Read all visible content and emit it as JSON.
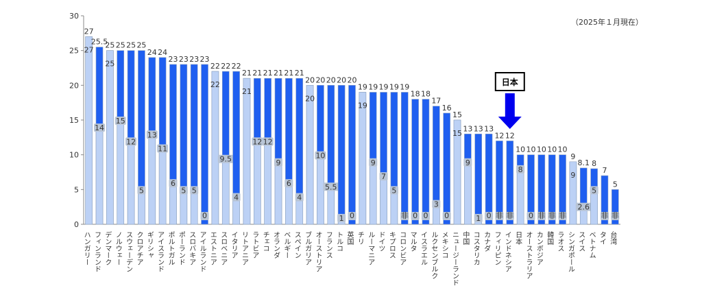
{
  "note": "（2025年１月現在）",
  "chart_data": {
    "type": "bar",
    "ylim": [
      0,
      30
    ],
    "yticks": [
      "0",
      "5",
      "10",
      "15",
      "20",
      "25",
      "30"
    ],
    "callout_label": "日本",
    "colors": {
      "standard": "#1f5ff0",
      "reduced": "#bcd1f5",
      "border": "#8da2c0",
      "arrow": "#0000ee"
    },
    "categories": [
      {
        "name": "ハンガリー",
        "standard": 27,
        "reduced": 27,
        "top": "27",
        "in": "27"
      },
      {
        "name": "フィンランド",
        "standard": 25.5,
        "reduced": 14,
        "top": "25.5",
        "in": "14"
      },
      {
        "name": "デンマーク",
        "standard": 25,
        "reduced": 25,
        "top": "25",
        "in": "25"
      },
      {
        "name": "ノルウェー",
        "standard": 25,
        "reduced": 15,
        "top": "25",
        "in": "15"
      },
      {
        "name": "スウェーデン",
        "standard": 25,
        "reduced": 12,
        "top": "25",
        "in": "12"
      },
      {
        "name": "クロアチア",
        "standard": 25,
        "reduced": 5,
        "top": "25",
        "in": "5"
      },
      {
        "name": "ギリシャ",
        "standard": 24,
        "reduced": 13,
        "top": "24",
        "in": "13"
      },
      {
        "name": "アイスランド",
        "standard": 24,
        "reduced": 11,
        "top": "24",
        "in": "11"
      },
      {
        "name": "ポルトガル",
        "standard": 23,
        "reduced": 6,
        "top": "23",
        "in": "6"
      },
      {
        "name": "ポーランド",
        "standard": 23,
        "reduced": 5,
        "top": "23",
        "in": "5"
      },
      {
        "name": "スロバキア",
        "standard": 23,
        "reduced": 5,
        "top": "23",
        "in": "5"
      },
      {
        "name": "アイルランド",
        "standard": 23,
        "reduced": 0,
        "top": "23",
        "in": "0"
      },
      {
        "name": "エストニア",
        "standard": 22,
        "reduced": 22,
        "top": "22",
        "in": "22"
      },
      {
        "name": "スロベニア",
        "standard": 22,
        "reduced": 9.5,
        "top": "22",
        "in": "9.5"
      },
      {
        "name": "イタリア",
        "standard": 22,
        "reduced": 4,
        "top": "22",
        "in": "4"
      },
      {
        "name": "リトアニア",
        "standard": 21,
        "reduced": 21,
        "top": "21",
        "in": "21"
      },
      {
        "name": "ラトビア",
        "standard": 21,
        "reduced": 12,
        "top": "21",
        "in": "12"
      },
      {
        "name": "チェコ",
        "standard": 21,
        "reduced": 12,
        "top": "21",
        "in": "12"
      },
      {
        "name": "オランダ",
        "standard": 21,
        "reduced": 9,
        "top": "21",
        "in": "9"
      },
      {
        "name": "ベルギー",
        "standard": 21,
        "reduced": 6,
        "top": "21",
        "in": "6"
      },
      {
        "name": "スペイン",
        "standard": 21,
        "reduced": 4,
        "top": "21",
        "in": "4"
      },
      {
        "name": "ブルガリア",
        "standard": 20,
        "reduced": 20,
        "top": "20",
        "in": "20"
      },
      {
        "name": "オーストリア",
        "standard": 20,
        "reduced": 10,
        "top": "20",
        "in": "10"
      },
      {
        "name": "フランス",
        "standard": 20,
        "reduced": 5.5,
        "top": "20",
        "in": "5.5"
      },
      {
        "name": "トルコ",
        "standard": 20,
        "reduced": 1,
        "top": "20",
        "in": "1"
      },
      {
        "name": "英国",
        "standard": 20,
        "reduced": 0,
        "top": "20",
        "in": "0"
      },
      {
        "name": "チリ",
        "standard": 19,
        "reduced": 19,
        "top": "19",
        "in": "19"
      },
      {
        "name": "ルーマニア",
        "standard": 19,
        "reduced": 9,
        "top": "19",
        "in": "9"
      },
      {
        "name": "ドイツ",
        "standard": 19,
        "reduced": 7,
        "top": "19",
        "in": "7"
      },
      {
        "name": "キプロス",
        "standard": 19,
        "reduced": 5,
        "top": "19",
        "in": "5"
      },
      {
        "name": "コロンビア",
        "standard": 19,
        "reduced": 0,
        "top": "19",
        "in": "非"
      },
      {
        "name": "マルタ",
        "standard": 18,
        "reduced": 0,
        "top": "18",
        "in": "0"
      },
      {
        "name": "イスラエル",
        "standard": 18,
        "reduced": 0,
        "top": "18",
        "in": "0"
      },
      {
        "name": "ルクセンブルク",
        "standard": 17,
        "reduced": 3,
        "top": "17",
        "in": "3"
      },
      {
        "name": "メキシコ",
        "standard": 16,
        "reduced": 0,
        "top": "16",
        "in": "0"
      },
      {
        "name": "ニュージーランド",
        "standard": 15,
        "reduced": 15,
        "top": "15",
        "in": "15"
      },
      {
        "name": "中国",
        "standard": 13,
        "reduced": 9,
        "top": "13",
        "in": "9"
      },
      {
        "name": "コスタリカ",
        "standard": 13,
        "reduced": 1,
        "top": "13",
        "in": "1"
      },
      {
        "name": "カナダ",
        "standard": 13,
        "reduced": 0,
        "top": "13",
        "in": "0"
      },
      {
        "name": "フィリピン",
        "standard": 12,
        "reduced": 0,
        "top": "12",
        "in": "非"
      },
      {
        "name": "インドネシア",
        "standard": 12,
        "reduced": 0,
        "top": "12",
        "in": "非"
      },
      {
        "name": "日本",
        "standard": 10,
        "reduced": 8,
        "top": "10",
        "in": "8"
      },
      {
        "name": "オーストラリア",
        "standard": 10,
        "reduced": 0,
        "top": "10",
        "in": "0"
      },
      {
        "name": "カンボジア",
        "standard": 10,
        "reduced": 0,
        "top": "10",
        "in": "非"
      },
      {
        "name": "韓国",
        "standard": 10,
        "reduced": 0,
        "top": "10",
        "in": "非"
      },
      {
        "name": "ラオス",
        "standard": 10,
        "reduced": 0,
        "top": "10",
        "in": "非"
      },
      {
        "name": "シンガポール",
        "standard": 9,
        "reduced": 9,
        "top": "9",
        "in": "9"
      },
      {
        "name": "スイス",
        "standard": 8.1,
        "reduced": 2.6,
        "top": "8.1",
        "in": "2.6"
      },
      {
        "name": "ベトナム",
        "standard": 8,
        "reduced": 5,
        "top": "8",
        "in": "5"
      },
      {
        "name": "タイ",
        "standard": 7,
        "reduced": 0,
        "top": "7",
        "in": "非"
      },
      {
        "name": "台湾",
        "standard": 5,
        "reduced": 0,
        "top": "5",
        "in": "非"
      }
    ]
  }
}
